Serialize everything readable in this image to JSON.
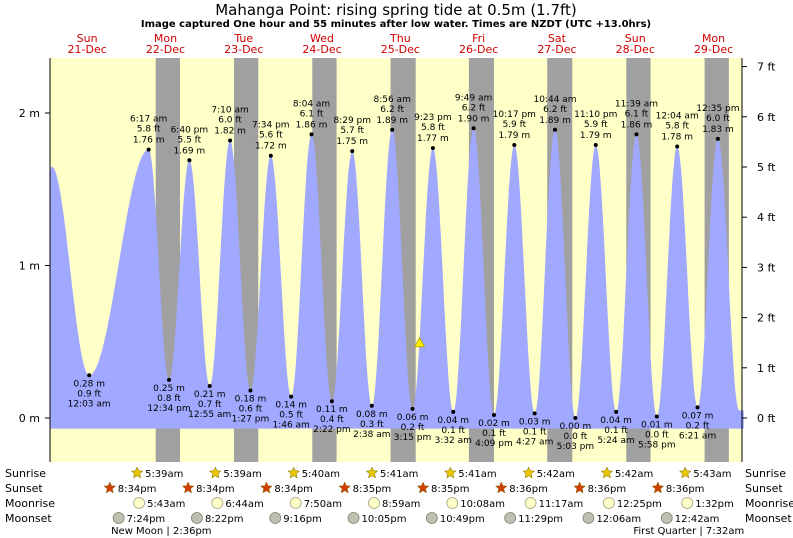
{
  "title": "Mahanga Point: rising  spring tide at 0.5m (1.7ft)",
  "subtitle": "Image captured One hour and 55 minutes after low water. Times are NZDT (UTC +13.0hrs)",
  "colors": {
    "tide_fill": "#a0a8ff",
    "day_bg": "#ffffc8",
    "night_bg": "#a0a0a0",
    "day_label": "#d00000",
    "sun_icon": "#e8c800",
    "sunset_icon": "#d04000",
    "current_marker": "#ffee00"
  },
  "row_labels": {
    "sunrise": "Sunrise",
    "sunset": "Sunset",
    "moonrise": "Moonrise",
    "moonset": "Moonset"
  },
  "phase_notes": [
    {
      "text": "New Moon | 2:36pm",
      "anchor_day": 1
    },
    {
      "text": "First Quarter | 7:32am",
      "anchor_day": 8
    }
  ],
  "chart_data": {
    "type": "area",
    "title": "Mahanga Point: rising  spring tide at 0.5m (1.7ft)",
    "subtitle": "Image captured One hour and 55 minutes after low water. Times are NZDT (UTC +13.0hrs)",
    "x_range_days": [
      0,
      9.2
    ],
    "ylim_m": [
      -0.35,
      2.35
    ],
    "yticks_left": [
      {
        "value": 0,
        "label": "0 m"
      },
      {
        "value": 1,
        "label": "1 m"
      },
      {
        "value": 2,
        "label": "2 m"
      }
    ],
    "yticks_right": [
      {
        "value": 0,
        "label": "0 ft"
      },
      {
        "value": 1,
        "label": "1 ft"
      },
      {
        "value": 2,
        "label": "2 ft"
      },
      {
        "value": 3,
        "label": "3 ft"
      },
      {
        "value": 4,
        "label": "4 ft"
      },
      {
        "value": 5,
        "label": "5 ft"
      },
      {
        "value": 6,
        "label": "6 ft"
      },
      {
        "value": 7,
        "label": "7 ft"
      }
    ],
    "days": [
      {
        "name": "Sun",
        "date": "21-Dec"
      },
      {
        "name": "Mon",
        "date": "22-Dec"
      },
      {
        "name": "Tue",
        "date": "23-Dec"
      },
      {
        "name": "Wed",
        "date": "24-Dec"
      },
      {
        "name": "Thu",
        "date": "25-Dec"
      },
      {
        "name": "Fri",
        "date": "26-Dec"
      },
      {
        "name": "Sat",
        "date": "27-Dec"
      },
      {
        "name": "Sun",
        "date": "28-Dec"
      },
      {
        "name": "Mon",
        "date": "29-Dec"
      }
    ],
    "start_level_m": 1.62,
    "extremes": [
      {
        "kind": "high",
        "t": 0.02,
        "m": 1.65,
        "time": "",
        "ft": "",
        "label_m": ""
      },
      {
        "kind": "low",
        "t": 0.5,
        "m": 0.28,
        "time": "12:03 am",
        "ft": "0.9 ft",
        "label_m": "0.28 m"
      },
      {
        "kind": "high",
        "t": 1.26,
        "m": 1.76,
        "time": "6:17 am",
        "ft": "5.8 ft",
        "label_m": "1.76 m"
      },
      {
        "kind": "low",
        "t": 1.52,
        "m": 0.25,
        "time": "12:34 pm",
        "ft": "0.8 ft",
        "label_m": "0.25 m"
      },
      {
        "kind": "high",
        "t": 1.78,
        "m": 1.69,
        "time": "6:40 pm",
        "ft": "5.5 ft",
        "label_m": "1.69 m"
      },
      {
        "kind": "low",
        "t": 2.04,
        "m": 0.21,
        "time": "12:55 am",
        "ft": "0.7 ft",
        "label_m": "0.21 m"
      },
      {
        "kind": "high",
        "t": 2.3,
        "m": 1.82,
        "time": "7:10 am",
        "ft": "6.0 ft",
        "label_m": "1.82 m"
      },
      {
        "kind": "low",
        "t": 2.56,
        "m": 0.18,
        "time": "1:27 pm",
        "ft": "0.6 ft",
        "label_m": "0.18 m"
      },
      {
        "kind": "high",
        "t": 2.82,
        "m": 1.72,
        "time": "7:34 pm",
        "ft": "5.6 ft",
        "label_m": "1.72 m"
      },
      {
        "kind": "low",
        "t": 3.08,
        "m": 0.14,
        "time": "1:46 am",
        "ft": "0.5 ft",
        "label_m": "0.14 m"
      },
      {
        "kind": "high",
        "t": 3.34,
        "m": 1.86,
        "time": "8:04 am",
        "ft": "6.1 ft",
        "label_m": "1.86 m"
      },
      {
        "kind": "low",
        "t": 3.6,
        "m": 0.11,
        "time": "2:22 pm",
        "ft": "0.4 ft",
        "label_m": "0.11 m"
      },
      {
        "kind": "high",
        "t": 3.86,
        "m": 1.75,
        "time": "8:29 pm",
        "ft": "5.7 ft",
        "label_m": "1.75 m"
      },
      {
        "kind": "low",
        "t": 4.11,
        "m": 0.08,
        "time": "2:38 am",
        "ft": "0.3 ft",
        "label_m": "0.08 m"
      },
      {
        "kind": "high",
        "t": 4.37,
        "m": 1.89,
        "time": "8:56 am",
        "ft": "6.2 ft",
        "label_m": "1.89 m"
      },
      {
        "kind": "low",
        "t": 4.63,
        "m": 0.06,
        "time": "3:15 pm",
        "ft": "0.2 ft",
        "label_m": "0.06 m"
      },
      {
        "kind": "high",
        "t": 4.89,
        "m": 1.77,
        "time": "9:23 pm",
        "ft": "5.8 ft",
        "label_m": "1.77 m"
      },
      {
        "kind": "low",
        "t": 5.15,
        "m": 0.04,
        "time": "3:32 am",
        "ft": "0.1 ft",
        "label_m": "0.04 m"
      },
      {
        "kind": "high",
        "t": 5.41,
        "m": 1.9,
        "time": "9:49 am",
        "ft": "6.2 ft",
        "label_m": "1.90 m"
      },
      {
        "kind": "low",
        "t": 5.67,
        "m": 0.02,
        "time": "4:09 pm",
        "ft": "0.1 ft",
        "label_m": "0.02 m"
      },
      {
        "kind": "high",
        "t": 5.93,
        "m": 1.79,
        "time": "10:17 pm",
        "ft": "5.9 ft",
        "label_m": "1.79 m"
      },
      {
        "kind": "low",
        "t": 6.19,
        "m": 0.03,
        "time": "4:27 am",
        "ft": "0.1 ft",
        "label_m": "0.03 m"
      },
      {
        "kind": "high",
        "t": 6.45,
        "m": 1.89,
        "time": "10:44 am",
        "ft": "6.2 ft",
        "label_m": "1.89 m"
      },
      {
        "kind": "low",
        "t": 6.71,
        "m": 0.0,
        "time": "5:03 pm",
        "ft": "0.0 ft",
        "label_m": "0.00 m"
      },
      {
        "kind": "high",
        "t": 6.97,
        "m": 1.79,
        "time": "11:10 pm",
        "ft": "5.9 ft",
        "label_m": "1.79 m"
      },
      {
        "kind": "low",
        "t": 7.23,
        "m": 0.04,
        "time": "5:24 am",
        "ft": "0.1 ft",
        "label_m": "0.04 m"
      },
      {
        "kind": "high",
        "t": 7.49,
        "m": 1.86,
        "time": "11:39 am",
        "ft": "6.1 ft",
        "label_m": "1.86 m"
      },
      {
        "kind": "low",
        "t": 7.75,
        "m": 0.01,
        "time": "5:58 pm",
        "ft": "0.0 ft",
        "label_m": "0.01 m"
      },
      {
        "kind": "high",
        "t": 8.01,
        "m": 1.78,
        "time": "12:04 am",
        "ft": "5.8 ft",
        "label_m": "1.78 m"
      },
      {
        "kind": "low",
        "t": 8.27,
        "m": 0.07,
        "time": "6:21 am",
        "ft": "0.2 ft",
        "label_m": "0.07 m"
      },
      {
        "kind": "high",
        "t": 8.53,
        "m": 1.83,
        "time": "12:35 pm",
        "ft": "6.0 ft",
        "label_m": "1.83 m"
      },
      {
        "kind": "low",
        "t": 8.8,
        "m": 0.05,
        "time": "",
        "ft": "",
        "label_m": ""
      }
    ],
    "current": {
      "t": 4.72,
      "m": 0.5
    },
    "nights": [
      [
        1.35,
        1.66
      ],
      [
        2.35,
        2.66
      ],
      [
        3.35,
        3.66
      ],
      [
        4.35,
        4.67
      ],
      [
        5.35,
        5.67
      ],
      [
        6.35,
        6.67
      ],
      [
        7.36,
        7.67
      ],
      [
        8.36,
        8.67
      ]
    ],
    "sun_moon": [
      {
        "sunrise": "",
        "sunset": "",
        "moonrise": "",
        "moonset": ""
      },
      {
        "sunrise": "5:39am",
        "sunset": "8:34pm",
        "moonrise": "5:43am",
        "moonset": "7:24pm"
      },
      {
        "sunrise": "5:39am",
        "sunset": "8:34pm",
        "moonrise": "6:44am",
        "moonset": "8:22pm"
      },
      {
        "sunrise": "5:40am",
        "sunset": "8:34pm",
        "moonrise": "7:50am",
        "moonset": "9:16pm"
      },
      {
        "sunrise": "5:41am",
        "sunset": "8:35pm",
        "moonrise": "8:59am",
        "moonset": "10:05pm"
      },
      {
        "sunrise": "5:41am",
        "sunset": "8:35pm",
        "moonrise": "10:08am",
        "moonset": "10:49pm"
      },
      {
        "sunrise": "5:42am",
        "sunset": "8:36pm",
        "moonrise": "11:17am",
        "moonset": "11:29pm"
      },
      {
        "sunrise": "5:42am",
        "sunset": "8:36pm",
        "moonrise": "12:25pm",
        "moonset": "12:06am"
      },
      {
        "sunrise": "5:43am",
        "sunset": "8:36pm",
        "moonrise": "1:32pm",
        "moonset": "12:42am"
      }
    ]
  }
}
